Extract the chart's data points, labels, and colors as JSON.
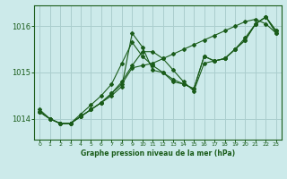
{
  "background_color": "#cceaea",
  "grid_color": "#aacece",
  "line_color": "#1a5c1a",
  "marker_color": "#1a5c1a",
  "xlabel": "Graphe pression niveau de la mer (hPa)",
  "xlabel_color": "#1a5c1a",
  "yticks": [
    1014,
    1015,
    1016
  ],
  "ylim": [
    1013.55,
    1016.45
  ],
  "xlim": [
    -0.5,
    23.5
  ],
  "xticks": [
    0,
    1,
    2,
    3,
    4,
    5,
    6,
    7,
    8,
    9,
    10,
    11,
    12,
    13,
    14,
    15,
    16,
    17,
    18,
    19,
    20,
    21,
    22,
    23
  ],
  "series": [
    [
      1014.15,
      1014.0,
      1013.9,
      1013.9,
      1014.05,
      1014.2,
      1014.35,
      1014.5,
      1014.7,
      1015.85,
      1015.55,
      1015.05,
      1015.0,
      1014.85,
      1014.75,
      1014.65,
      1015.35,
      1015.25,
      1015.3,
      1015.5,
      1015.7,
      1016.05,
      1016.2,
      1015.9
    ],
    [
      1014.15,
      1014.0,
      1013.9,
      1013.9,
      1014.05,
      1014.2,
      1014.35,
      1014.55,
      1014.75,
      1015.1,
      1015.15,
      1015.2,
      1015.3,
      1015.4,
      1015.5,
      1015.6,
      1015.7,
      1015.8,
      1015.9,
      1016.0,
      1016.1,
      1016.15,
      1016.05,
      1015.85
    ],
    [
      1014.15,
      1014.0,
      1013.9,
      1013.9,
      1014.05,
      1014.2,
      1014.35,
      1014.55,
      1014.8,
      1015.15,
      1015.45,
      1015.45,
      1015.3,
      1015.05,
      1014.8,
      1014.6,
      1015.2,
      1015.25,
      1015.3,
      1015.5,
      1015.7,
      1016.05,
      1016.2,
      1015.85
    ],
    [
      1014.2,
      1014.0,
      1013.9,
      1013.9,
      1014.1,
      1014.3,
      1014.5,
      1014.75,
      1015.2,
      1015.65,
      1015.35,
      1015.15,
      1015.0,
      1014.8,
      1014.75,
      1014.65,
      1015.35,
      1015.25,
      1015.3,
      1015.5,
      1015.75,
      1016.05,
      1016.2,
      1015.9
    ]
  ]
}
